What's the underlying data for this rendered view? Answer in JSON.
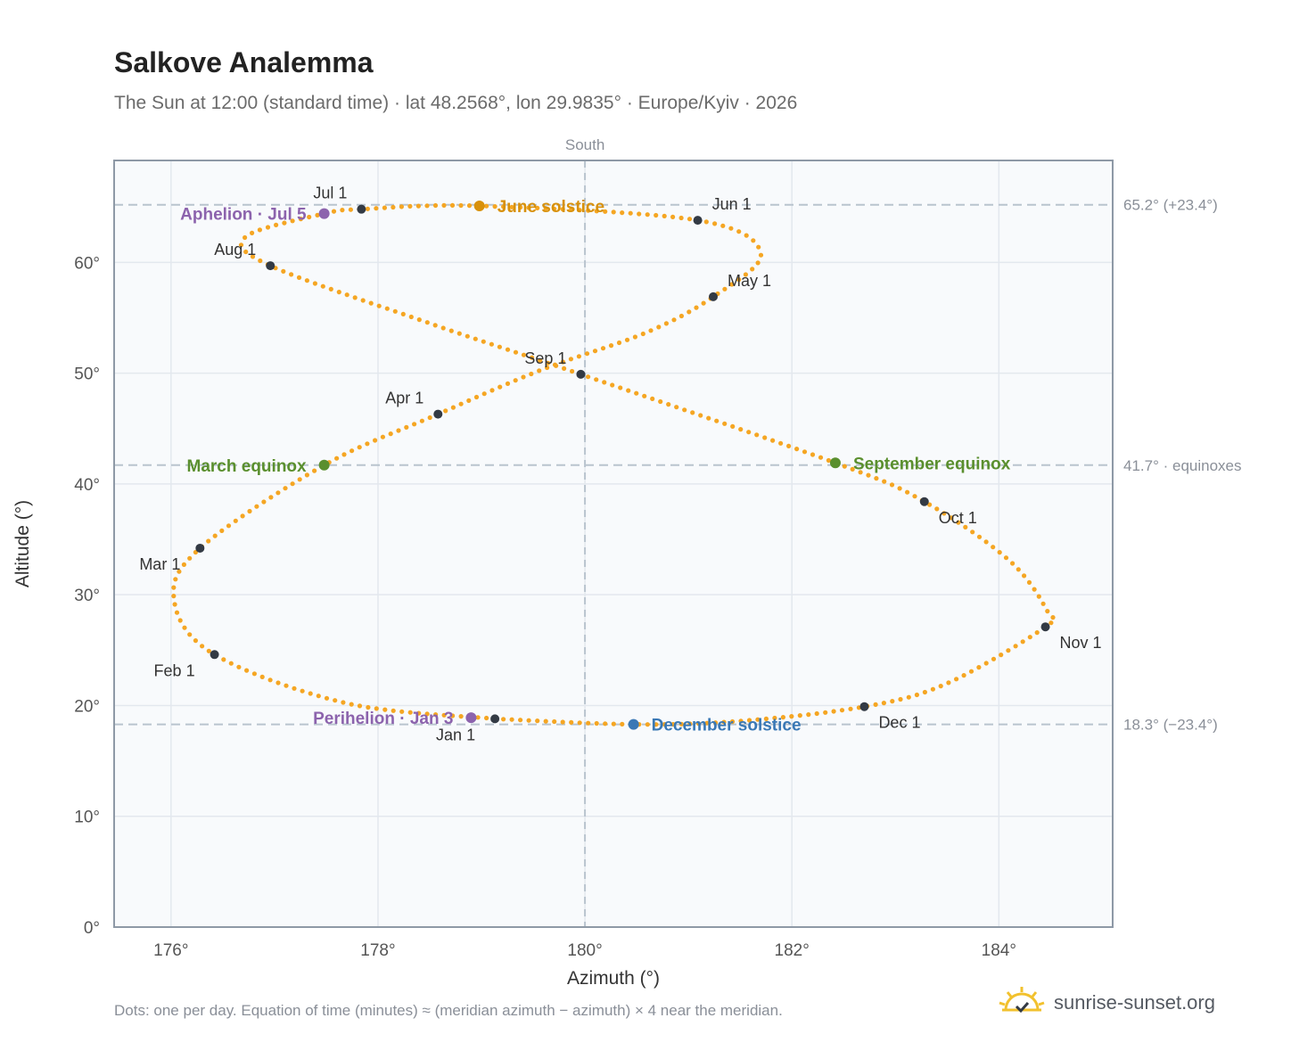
{
  "title": "Salkove Analemma",
  "subtitle": "The Sun at 12:00 (standard time) · lat 48.2568°, lon 29.9835° · Europe/Kyiv · 2026",
  "footnote": "Dots: one per day. Equation of time (minutes) ≈ (meridian azimuth − azimuth) × 4 near the meridian.",
  "brand": {
    "text": "sunrise-sunset.org",
    "icon": "sun-logo-icon"
  },
  "colors": {
    "path": "#f5a623",
    "month": "#333a44",
    "june": "#d8910b",
    "equinox": "#5a8f2e",
    "december": "#3a78b5",
    "apsis": "#8c63ad",
    "ref": "#b9c4ce",
    "axis": "#8e99a6",
    "plot_bg": "#f8fafc"
  },
  "chart_data": {
    "type": "scatter",
    "title": "Salkove Analemma",
    "xlabel": "Azimuth (°)",
    "ylabel": "Altitude (°)",
    "xlim": [
      175.45,
      185.1
    ],
    "ylim": [
      0,
      69.2
    ],
    "x_ticks": [
      {
        "v": 176,
        "label": "176°"
      },
      {
        "v": 178,
        "label": "178°"
      },
      {
        "v": 180,
        "label": "180°"
      },
      {
        "v": 182,
        "label": "182°"
      },
      {
        "v": 184,
        "label": "184°"
      }
    ],
    "y_ticks": [
      {
        "v": 0,
        "label": "0°"
      },
      {
        "v": 10,
        "label": "10°"
      },
      {
        "v": 20,
        "label": "20°"
      },
      {
        "v": 30,
        "label": "30°"
      },
      {
        "v": 40,
        "label": "40°"
      },
      {
        "v": 50,
        "label": "50°"
      },
      {
        "v": 60,
        "label": "60°"
      }
    ],
    "grid": true,
    "meridian": {
      "x": 180,
      "label": "South"
    },
    "reference_lines": [
      {
        "y": 65.2,
        "label": "65.2° (+23.4°)"
      },
      {
        "y": 41.7,
        "label": "41.7° · equinoxes"
      },
      {
        "y": 18.3,
        "label": "18.3° (−23.4°)"
      }
    ],
    "path_anchors": [
      {
        "x": 179.13,
        "y": 18.8
      },
      {
        "x": 177.7,
        "y": 20.2
      },
      {
        "x": 176.42,
        "y": 24.6
      },
      {
        "x": 176.03,
        "y": 29.5
      },
      {
        "x": 176.28,
        "y": 34.2
      },
      {
        "x": 177.48,
        "y": 41.7
      },
      {
        "x": 178.58,
        "y": 46.3
      },
      {
        "x": 179.58,
        "y": 50.3
      },
      {
        "x": 180.6,
        "y": 53.7
      },
      {
        "x": 181.24,
        "y": 56.9
      },
      {
        "x": 181.7,
        "y": 60.8
      },
      {
        "x": 181.09,
        "y": 63.8
      },
      {
        "x": 178.98,
        "y": 65.1
      },
      {
        "x": 177.84,
        "y": 64.8
      },
      {
        "x": 177.48,
        "y": 64.4
      },
      {
        "x": 176.72,
        "y": 62.3
      },
      {
        "x": 176.96,
        "y": 59.7
      },
      {
        "x": 178.5,
        "y": 54.5
      },
      {
        "x": 179.96,
        "y": 49.9
      },
      {
        "x": 182.42,
        "y": 41.9
      },
      {
        "x": 183.28,
        "y": 38.4
      },
      {
        "x": 184.1,
        "y": 33.1
      },
      {
        "x": 184.47,
        "y": 28.5
      },
      {
        "x": 184.45,
        "y": 27.1
      },
      {
        "x": 183.5,
        "y": 22.0
      },
      {
        "x": 182.7,
        "y": 19.9
      },
      {
        "x": 181.5,
        "y": 18.6
      },
      {
        "x": 180.47,
        "y": 18.3
      },
      {
        "x": 179.13,
        "y": 18.8
      }
    ],
    "month_markers": [
      {
        "label": "Jan 1",
        "x": 179.13,
        "y": 18.8,
        "pos": "below-left"
      },
      {
        "label": "Feb 1",
        "x": 176.42,
        "y": 24.6,
        "pos": "below-left"
      },
      {
        "label": "Mar 1",
        "x": 176.28,
        "y": 34.2,
        "pos": "below-left"
      },
      {
        "label": "Apr 1",
        "x": 178.58,
        "y": 46.3,
        "pos": "above-left"
      },
      {
        "label": "May 1",
        "x": 181.24,
        "y": 56.9,
        "pos": "above-right"
      },
      {
        "label": "Jun 1",
        "x": 181.09,
        "y": 63.8,
        "pos": "above-right"
      },
      {
        "label": "Jul 1",
        "x": 177.84,
        "y": 64.8,
        "pos": "above-left"
      },
      {
        "label": "Aug 1",
        "x": 176.96,
        "y": 59.7,
        "pos": "above-left"
      },
      {
        "label": "Sep 1",
        "x": 179.96,
        "y": 49.9,
        "pos": "above-left"
      },
      {
        "label": "Oct 1",
        "x": 183.28,
        "y": 38.4,
        "pos": "below-right"
      },
      {
        "label": "Nov 1",
        "x": 184.45,
        "y": 27.1,
        "pos": "below-right"
      },
      {
        "label": "Dec 1",
        "x": 182.7,
        "y": 19.9,
        "pos": "below-right"
      }
    ],
    "events": [
      {
        "label": "June solstice",
        "x": 178.98,
        "y": 65.1,
        "color": "#d8910b",
        "side": "right"
      },
      {
        "label": "March equinox",
        "x": 177.48,
        "y": 41.7,
        "color": "#5a8f2e",
        "side": "left"
      },
      {
        "label": "September equinox",
        "x": 182.42,
        "y": 41.9,
        "color": "#5a8f2e",
        "side": "right"
      },
      {
        "label": "December solstice",
        "x": 180.47,
        "y": 18.3,
        "color": "#3a78b5",
        "side": "right"
      },
      {
        "label": "Aphelion · Jul 5",
        "x": 177.48,
        "y": 64.4,
        "color": "#8c63ad",
        "side": "left"
      },
      {
        "label": "Perihelion · Jan 3",
        "x": 178.9,
        "y": 18.9,
        "color": "#8c63ad",
        "side": "left"
      }
    ]
  }
}
